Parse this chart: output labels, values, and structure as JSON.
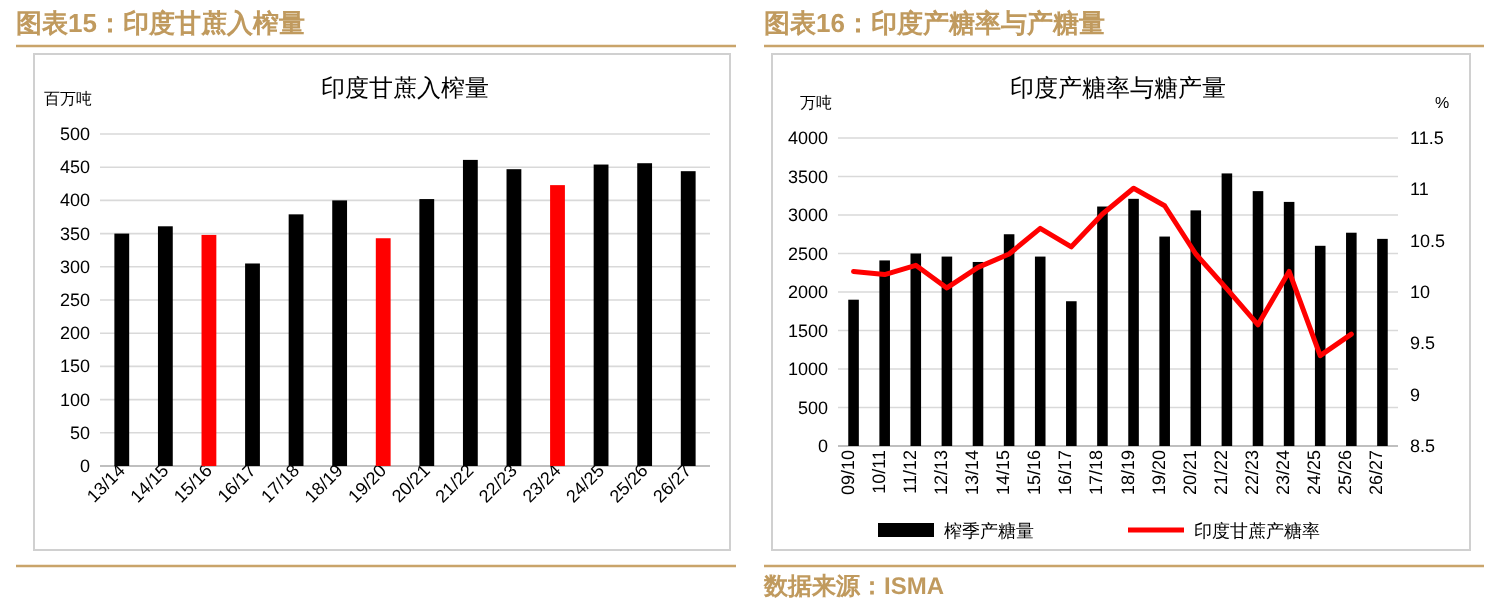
{
  "chart_data": [
    {
      "type": "bar",
      "subtitle": "图表15：印度甘蔗入榨量",
      "title": "印度甘蔗入榨量",
      "ylabel": "百万吨",
      "categories": [
        "13/14",
        "14/15",
        "15/16",
        "16/17",
        "17/18",
        "18/19",
        "19/20",
        "20/21",
        "21/22",
        "22/23",
        "23/24",
        "24/25",
        "25/26",
        "26/27"
      ],
      "values": [
        350,
        361,
        348,
        305,
        379,
        400,
        343,
        402,
        461,
        447,
        423,
        454,
        456,
        444
      ],
      "colors": [
        "#000000",
        "#000000",
        "#ff0000",
        "#000000",
        "#000000",
        "#000000",
        "#ff0000",
        "#000000",
        "#000000",
        "#000000",
        "#ff0000",
        "#000000",
        "#000000",
        "#000000"
      ],
      "ylim": [
        0,
        500
      ],
      "yticks": [
        0,
        50,
        100,
        150,
        200,
        250,
        300,
        350,
        400,
        450,
        500
      ],
      "grid": "y",
      "legend": false
    },
    {
      "type": "bar",
      "subtitle": "图表16：印度产糖率与产糖量",
      "title": "印度产糖率与糖产量",
      "ylabel": "万吨",
      "y2label": "%",
      "categories": [
        "09/10",
        "10/11",
        "11/12",
        "12/13",
        "13/14",
        "14/15",
        "15/16",
        "16/17",
        "17/18",
        "18/19",
        "19/20",
        "20/21",
        "21/22",
        "22/23",
        "23/24",
        "24/25",
        "25/26",
        "26/27"
      ],
      "series": [
        {
          "name": "榨季产糖量",
          "color": "#000000",
          "values": [
            1900,
            2410,
            2500,
            2460,
            2390,
            2750,
            2460,
            1880,
            3110,
            3210,
            2720,
            3060,
            3540,
            3310,
            3170,
            2600,
            2770,
            2690
          ]
        },
        {
          "name": "印度甘蔗产糖率",
          "type": "line",
          "axis": "y2",
          "color": "#ff0000",
          "values": [
            10.2,
            10.17,
            10.26,
            10.04,
            10.24,
            10.37,
            10.62,
            10.44,
            10.76,
            11.01,
            10.84,
            10.37,
            10.03,
            9.68,
            10.2,
            9.38,
            9.59,
            null
          ]
        }
      ],
      "ylim": [
        0,
        4000
      ],
      "yticks": [
        0,
        500,
        1000,
        1500,
        2000,
        2500,
        3000,
        3500,
        4000
      ],
      "y2lim": [
        8.5,
        11.5
      ],
      "y2ticks": [
        8.5,
        9,
        9.5,
        10,
        10.5,
        11,
        11.5
      ],
      "annotations": [
        "数据来源：ISMA"
      ],
      "grid": "y",
      "legend": "bottom"
    }
  ]
}
